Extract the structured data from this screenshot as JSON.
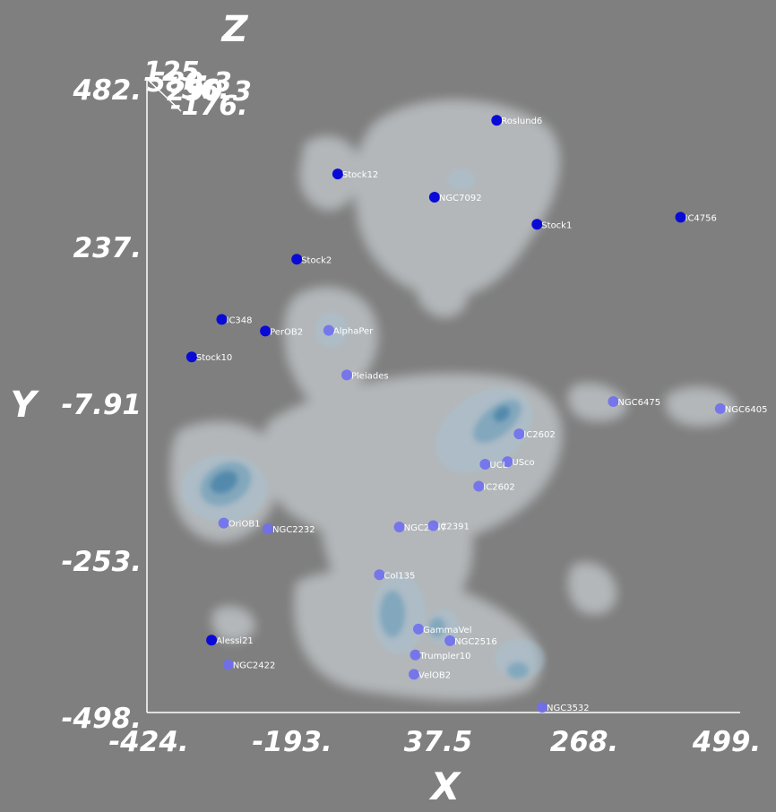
{
  "chart_data": {
    "type": "scatter",
    "title": "",
    "xlabel": "X",
    "ylabel": "Y",
    "zlabel": "Z",
    "x_ticks": [
      "-424.",
      "-193.",
      "37.5",
      "268.",
      "499."
    ],
    "y_ticks": [
      "482.",
      "237.",
      "-7.91",
      "-253.",
      "-498."
    ],
    "z_ticks": [
      "125.",
      "-56.",
      "-176.",
      "580.3",
      "290.3"
    ],
    "xlim": [
      -424,
      499
    ],
    "ylim": [
      -498,
      482
    ],
    "grid": false,
    "colors": {
      "background": "#7f7f7f",
      "axes": "#ffffff",
      "point_foreground": "#6f6ff0",
      "point_background": "#0a0ad6",
      "density_outer": "#e4ebf0",
      "density_mid": "#a9c8db",
      "density_inner": "#5f98b8",
      "density_core": "#3b7ea6"
    },
    "clusters": [
      {
        "name": "Roslund6",
        "x": 119,
        "y": 418,
        "in_front": false
      },
      {
        "name": "Stock12",
        "x": -129,
        "y": 335,
        "in_front": false
      },
      {
        "name": "NGC7092",
        "x": 22,
        "y": 299,
        "in_front": false
      },
      {
        "name": "Stock1",
        "x": 182,
        "y": 257,
        "in_front": false
      },
      {
        "name": "IC4756",
        "x": 406,
        "y": 268,
        "in_front": false
      },
      {
        "name": "Stock2",
        "x": -193,
        "y": 203,
        "in_front": false
      },
      {
        "name": "IC348",
        "x": -310,
        "y": 110,
        "in_front": false
      },
      {
        "name": "PerOB2",
        "x": -242,
        "y": 92,
        "in_front": false
      },
      {
        "name": "AlphaPer",
        "x": -143,
        "y": 93,
        "in_front": true
      },
      {
        "name": "Stock10",
        "x": -357,
        "y": 52,
        "in_front": false
      },
      {
        "name": "Pleiades",
        "x": -115,
        "y": 24,
        "in_front": true
      },
      {
        "name": "NGC6475",
        "x": 301,
        "y": -17,
        "in_front": true
      },
      {
        "name": "NGC6405",
        "x": 468,
        "y": -28,
        "in_front": true
      },
      {
        "name": "IC2602",
        "x": 154,
        "y": -67,
        "in_front": true
      },
      {
        "name": "USco",
        "x": 136,
        "y": -110,
        "in_front": true
      },
      {
        "name": "UCL",
        "x": 101,
        "y": -114,
        "in_front": true
      },
      {
        "name": "IC2602",
        "x": 91,
        "y": -148,
        "in_front": true
      },
      {
        "name": "OriOB1",
        "x": -307,
        "y": -205,
        "in_front": true
      },
      {
        "name": "NGC2232",
        "x": -238,
        "y": -214,
        "in_front": true
      },
      {
        "name": "NGC2547",
        "x": -33,
        "y": -211,
        "in_front": true
      },
      {
        "name": "IC2391",
        "x": 20,
        "y": -209,
        "in_front": true
      },
      {
        "name": "Col135",
        "x": -64,
        "y": -285,
        "in_front": true
      },
      {
        "name": "GammaVel",
        "x": -3,
        "y": -369,
        "in_front": true
      },
      {
        "name": "Alessi21",
        "x": -326,
        "y": -386,
        "in_front": false
      },
      {
        "name": "NGC2516",
        "x": 46,
        "y": -387,
        "in_front": true
      },
      {
        "name": "Trumpler10",
        "x": -8,
        "y": -409,
        "in_front": true
      },
      {
        "name": "NGC2422",
        "x": -300,
        "y": -424,
        "in_front": true
      },
      {
        "name": "VelOB2",
        "x": -10,
        "y": -439,
        "in_front": true
      },
      {
        "name": "NGC3532",
        "x": 190,
        "y": -490,
        "in_front": true
      }
    ]
  }
}
